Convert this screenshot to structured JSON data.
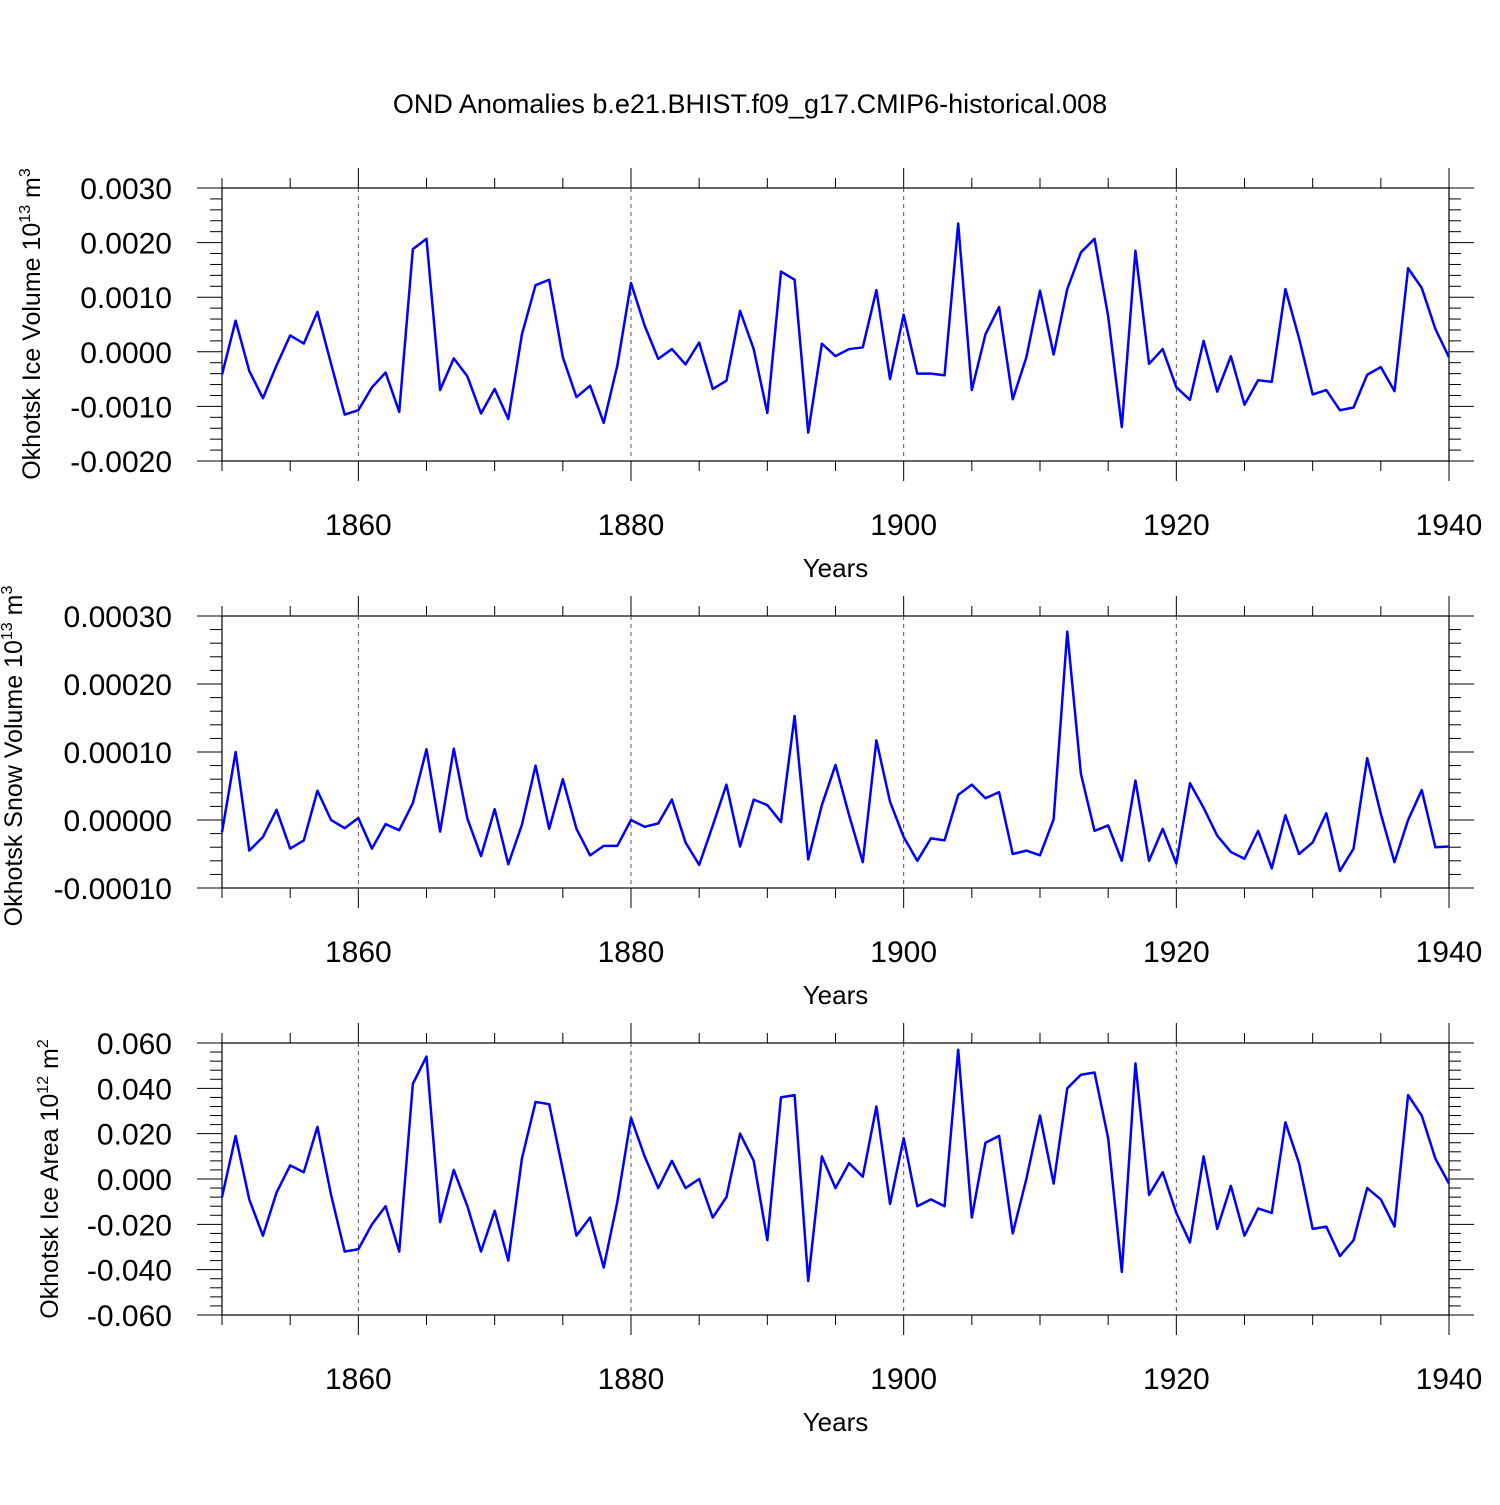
{
  "figure_title": "OND Anomalies b.e21.BHIST.f09_g17.CMIP6-historical.008",
  "line_color": "#0000ff",
  "chart_data": [
    {
      "type": "line",
      "ylabel": "Okhotsk Ice Volume 10",
      "ylabel_exp": "13",
      "ylabel_unit": " m",
      "ylabel_unit_exp": "3",
      "xlabel": "Years",
      "xlim": [
        1850,
        1940
      ],
      "ylim": [
        -0.002,
        0.003
      ],
      "xticks": [
        1860,
        1880,
        1900,
        1920,
        1940
      ],
      "xtick_labels": [
        "1860",
        "1880",
        "1900",
        "1920",
        "1940"
      ],
      "yticks": [
        -0.002,
        -0.001,
        0.0,
        0.001,
        0.002,
        0.003
      ],
      "ytick_labels": [
        "-0.0020",
        "-0.0010",
        "0.0000",
        "0.0010",
        "0.0020",
        "0.0030"
      ],
      "grid": "vertical dashed at major x ticks",
      "series": [
        {
          "x_start": 1850,
          "x_step": 1,
          "values": [
            -0.00042,
            0.00057,
            -0.00035,
            -0.00085,
            -0.00025,
            0.0003,
            0.00015,
            0.00073,
            -0.00022,
            -0.00115,
            -0.00107,
            -0.00065,
            -0.00038,
            -0.0011,
            0.00188,
            0.00207,
            -0.0007,
            -0.00012,
            -0.00045,
            -0.00113,
            -0.00068,
            -0.00123,
            0.00032,
            0.00122,
            0.00132,
            -0.0001,
            -0.00083,
            -0.00062,
            -0.0013,
            -0.00025,
            0.00126,
            0.00048,
            -0.00013,
            5e-05,
            -0.00023,
            0.00017,
            -0.00068,
            -0.00053,
            0.00075,
            5e-05,
            -0.00112,
            0.00147,
            0.00132,
            -0.00148,
            0.00015,
            -8e-05,
            5e-05,
            8e-05,
            0.00113,
            -0.0005,
            0.00068,
            -0.0004,
            -0.0004,
            -0.00043,
            0.00235,
            -0.0007,
            0.00032,
            0.00082,
            -0.00087,
            -0.0001,
            0.00112,
            -5e-05,
            0.00115,
            0.00182,
            0.00207,
            0.00065,
            -0.00138,
            0.00185,
            -0.00022,
            5e-05,
            -0.00065,
            -0.00088,
            0.0002,
            -0.00073,
            -8e-05,
            -0.00097,
            -0.00052,
            -0.00055,
            0.00115,
            0.00025,
            -0.00078,
            -0.0007,
            -0.00107,
            -0.00102,
            -0.00042,
            -0.00028,
            -0.00072,
            0.00153,
            0.00117,
            0.00042,
            -0.0001
          ]
        }
      ]
    },
    {
      "type": "line",
      "ylabel": "Okhotsk Snow Volume 10",
      "ylabel_exp": "13",
      "ylabel_unit": " m",
      "ylabel_unit_exp": "3",
      "xlabel": "Years",
      "xlim": [
        1850,
        1940
      ],
      "ylim": [
        -0.0001,
        0.0003
      ],
      "xticks": [
        1860,
        1880,
        1900,
        1920,
        1940
      ],
      "xtick_labels": [
        "1860",
        "1880",
        "1900",
        "1920",
        "1940"
      ],
      "yticks": [
        -0.0001,
        0.0,
        0.0001,
        0.0002,
        0.0003
      ],
      "ytick_labels": [
        "-0.00010",
        "0.00000",
        "0.00010",
        "0.00020",
        "0.00030"
      ],
      "grid": "vertical dashed at major x ticks",
      "series": [
        {
          "x_start": 1850,
          "x_step": 1,
          "values": [
            -1.8e-05,
            0.0001,
            -4.5e-05,
            -2.5e-05,
            1.5e-05,
            -4.2e-05,
            -3e-05,
            4.3e-05,
            0.0,
            -1.2e-05,
            3e-06,
            -4.2e-05,
            -6e-06,
            -1.5e-05,
            2.5e-05,
            0.000104,
            -1.7e-05,
            0.000105,
            2e-06,
            -5.3e-05,
            1.6e-05,
            -6.5e-05,
            -7e-06,
            8e-05,
            -1.3e-05,
            6e-05,
            -1.3e-05,
            -5.2e-05,
            -3.8e-05,
            -3.8e-05,
            0.0,
            -1e-05,
            -5e-06,
            3e-05,
            -3.3e-05,
            -6.6e-05,
            -8e-06,
            5.2e-05,
            -3.9e-05,
            3e-05,
            2.2e-05,
            -3e-06,
            0.000153,
            -5.8e-05,
            2.2e-05,
            8.1e-05,
            7e-06,
            -6.2e-05,
            0.000117,
            2.7e-05,
            -2.5e-05,
            -6e-05,
            -2.7e-05,
            -3e-05,
            3.7e-05,
            5.2e-05,
            3.2e-05,
            4.1e-05,
            -5e-05,
            -4.5e-05,
            -5.2e-05,
            1e-06,
            0.000277,
            6.8e-05,
            -1.6e-05,
            -8e-06,
            -6e-05,
            5.8e-05,
            -6e-05,
            -1.3e-05,
            -6.4e-05,
            5.4e-05,
            1.8e-05,
            -2.3e-05,
            -4.7e-05,
            -5.7e-05,
            -1.6e-05,
            -7.1e-05,
            7e-06,
            -5e-05,
            -3.3e-05,
            1e-05,
            -7.5e-05,
            -4.2e-05,
            9.1e-05,
            9e-06,
            -6.2e-05,
            0.0,
            4.4e-05,
            -4e-05,
            -3.9e-05
          ]
        }
      ]
    },
    {
      "type": "line",
      "ylabel": "Okhotsk Ice Area 10",
      "ylabel_exp": "12",
      "ylabel_unit": " m",
      "ylabel_unit_exp": "2",
      "xlabel": "Years",
      "xlim": [
        1850,
        1940
      ],
      "ylim": [
        -0.06,
        0.06
      ],
      "xticks": [
        1860,
        1880,
        1900,
        1920,
        1940
      ],
      "xtick_labels": [
        "1860",
        "1880",
        "1900",
        "1920",
        "1940"
      ],
      "yticks": [
        -0.06,
        -0.04,
        -0.02,
        0.0,
        0.02,
        0.04,
        0.06
      ],
      "ytick_labels": [
        "-0.060",
        "-0.040",
        "-0.020",
        "0.000",
        "0.020",
        "0.040",
        "0.060"
      ],
      "grid": "vertical dashed at major x ticks",
      "series": [
        {
          "x_start": 1850,
          "x_step": 1,
          "values": [
            -0.008,
            0.019,
            -0.009,
            -0.025,
            -0.006,
            0.006,
            0.003,
            0.023,
            -0.007,
            -0.032,
            -0.031,
            -0.02,
            -0.012,
            -0.032,
            0.042,
            0.054,
            -0.019,
            0.004,
            -0.012,
            -0.032,
            -0.014,
            -0.036,
            0.009,
            0.034,
            0.033,
            0.004,
            -0.025,
            -0.017,
            -0.039,
            -0.01,
            0.027,
            0.01,
            -0.004,
            0.008,
            -0.004,
            0.0,
            -0.017,
            -0.008,
            0.02,
            0.008,
            -0.027,
            0.036,
            0.037,
            -0.045,
            0.01,
            -0.004,
            0.007,
            0.001,
            0.032,
            -0.011,
            0.018,
            -0.012,
            -0.009,
            -0.012,
            0.057,
            -0.017,
            0.016,
            0.019,
            -0.024,
            0.0,
            0.028,
            -0.002,
            0.04,
            0.046,
            0.047,
            0.018,
            -0.041,
            0.051,
            -0.007,
            0.003,
            -0.015,
            -0.028,
            0.01,
            -0.022,
            -0.003,
            -0.025,
            -0.013,
            -0.015,
            0.025,
            0.007,
            -0.022,
            -0.021,
            -0.034,
            -0.027,
            -0.004,
            -0.009,
            -0.021,
            0.037,
            0.028,
            0.009,
            -0.002
          ]
        }
      ]
    }
  ]
}
